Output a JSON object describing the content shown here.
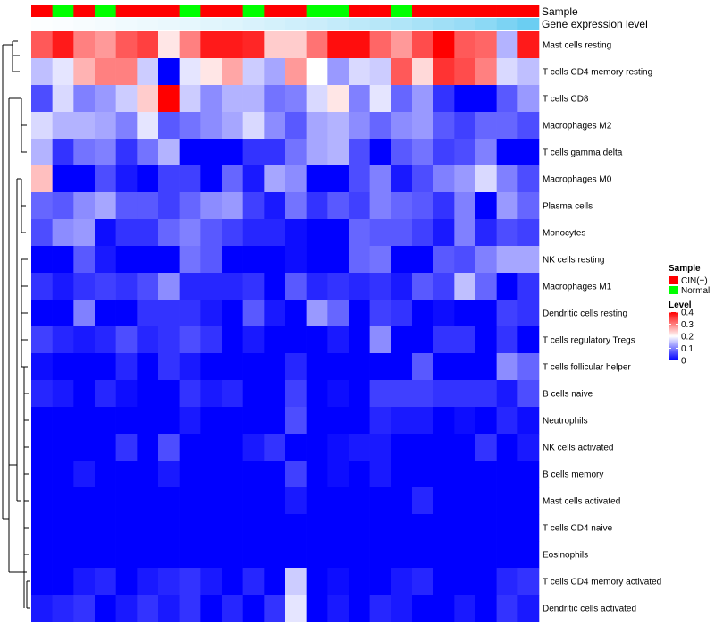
{
  "chart_data": {
    "type": "heatmap",
    "title": "",
    "annotation_tracks": [
      {
        "name": "Sample",
        "values": [
          "CIN(+)",
          "Normal",
          "CIN(+)",
          "Normal",
          "CIN(+)",
          "CIN(+)",
          "CIN(+)",
          "Normal",
          "CIN(+)",
          "CIN(+)",
          "Normal",
          "CIN(+)",
          "CIN(+)",
          "Normal",
          "Normal",
          "CIN(+)",
          "CIN(+)",
          "Normal",
          "CIN(+)",
          "CIN(+)",
          "CIN(+)",
          "CIN(+)",
          "CIN(+)",
          "CIN(+)"
        ]
      },
      {
        "name": "Gene expression level",
        "values": [
          0.02,
          0.03,
          0.05,
          0.07,
          0.09,
          0.11,
          0.13,
          0.15,
          0.18,
          0.2,
          0.23,
          0.26,
          0.29,
          0.32,
          0.36,
          0.4,
          0.44,
          0.48,
          0.53,
          0.58,
          0.63,
          0.7,
          0.8,
          0.9
        ]
      }
    ],
    "legends": {
      "sample": {
        "title": "Sample",
        "entries": [
          {
            "label": "CIN(+)",
            "color": "#ff0000"
          },
          {
            "label": "Normal",
            "color": "#00ff00"
          }
        ]
      },
      "level": {
        "title": "Level",
        "ticks": [
          {
            "value": 0.4,
            "label": "0.4"
          },
          {
            "value": 0.3,
            "label": "0.3"
          },
          {
            "value": 0.2,
            "label": "0.2"
          },
          {
            "value": 0.1,
            "label": "0.1"
          },
          {
            "value": 0,
            "label": "0"
          }
        ]
      }
    },
    "color_scale": {
      "low": "#0000ff",
      "mid": "#ffffff",
      "high": "#ff0000",
      "min": 0,
      "mid_value": 0.2,
      "max": 0.4
    },
    "expr_scale": {
      "low": "#ffffff",
      "high": "#5bc8f0"
    },
    "row_labels": [
      "Mast cells resting",
      "T cells CD4 memory resting",
      "T cells CD8",
      "Macrophages M2",
      "T cells gamma delta",
      "Macrophages M0",
      "Plasma cells",
      "Monocytes",
      "NK cells resting",
      "Macrophages M1",
      "Dendritic cells resting",
      "T cells regulatory  Tregs",
      "T cells follicular helper",
      "B cells naive",
      "Neutrophils",
      "NK cells activated",
      "B cells memory",
      "Mast cells activated",
      "T cells CD4 naive",
      "Eosinophils",
      "T cells CD4 memory activated",
      "Dendritic cells activated"
    ],
    "values": [
      [
        0.33,
        0.38,
        0.3,
        0.28,
        0.33,
        0.35,
        0.22,
        0.3,
        0.38,
        0.38,
        0.37,
        0.24,
        0.24,
        0.31,
        0.39,
        0.39,
        0.32,
        0.28,
        0.34,
        0.4,
        0.33,
        0.32,
        0.14,
        0.38
      ],
      [
        0.15,
        0.18,
        0.26,
        0.3,
        0.3,
        0.16,
        0.0,
        0.18,
        0.22,
        0.27,
        0.16,
        0.13,
        0.28,
        0.2,
        0.12,
        0.17,
        0.16,
        0.33,
        0.23,
        0.36,
        0.34,
        0.3,
        0.17,
        0.15
      ],
      [
        0.06,
        0.17,
        0.1,
        0.12,
        0.16,
        0.24,
        0.4,
        0.16,
        0.11,
        0.14,
        0.14,
        0.09,
        0.1,
        0.17,
        0.22,
        0.1,
        0.18,
        0.08,
        0.12,
        0.04,
        0.0,
        0.0,
        0.07,
        0.12
      ],
      [
        0.17,
        0.14,
        0.14,
        0.13,
        0.1,
        0.18,
        0.07,
        0.09,
        0.11,
        0.13,
        0.17,
        0.11,
        0.07,
        0.13,
        0.14,
        0.11,
        0.08,
        0.11,
        0.12,
        0.07,
        0.05,
        0.08,
        0.08,
        0.06
      ],
      [
        0.14,
        0.04,
        0.09,
        0.1,
        0.04,
        0.09,
        0.14,
        0.0,
        0.0,
        0.0,
        0.04,
        0.04,
        0.09,
        0.13,
        0.14,
        0.06,
        0.0,
        0.07,
        0.09,
        0.05,
        0.06,
        0.1,
        0.0,
        0.0
      ],
      [
        0.25,
        0.0,
        0.0,
        0.06,
        0.02,
        0.0,
        0.05,
        0.05,
        0.0,
        0.08,
        0.02,
        0.13,
        0.11,
        0.0,
        0.0,
        0.06,
        0.1,
        0.02,
        0.06,
        0.1,
        0.12,
        0.17,
        0.1,
        0.06
      ],
      [
        0.08,
        0.07,
        0.11,
        0.13,
        0.07,
        0.07,
        0.05,
        0.08,
        0.11,
        0.12,
        0.05,
        0.02,
        0.09,
        0.04,
        0.07,
        0.05,
        0.1,
        0.08,
        0.07,
        0.04,
        0.1,
        0.0,
        0.12,
        0.08
      ],
      [
        0.06,
        0.11,
        0.12,
        0.01,
        0.04,
        0.04,
        0.08,
        0.1,
        0.07,
        0.05,
        0.03,
        0.03,
        0.01,
        0.0,
        0.0,
        0.08,
        0.07,
        0.07,
        0.05,
        0.02,
        0.1,
        0.03,
        0.06,
        0.05
      ],
      [
        0.0,
        0.0,
        0.07,
        0.02,
        0.0,
        0.0,
        0.0,
        0.09,
        0.07,
        0.0,
        0.0,
        0.0,
        0.01,
        0.0,
        0.0,
        0.08,
        0.09,
        0.0,
        0.0,
        0.07,
        0.06,
        0.1,
        0.13,
        0.13
      ],
      [
        0.04,
        0.02,
        0.04,
        0.05,
        0.04,
        0.06,
        0.11,
        0.03,
        0.03,
        0.03,
        0.04,
        0.0,
        0.07,
        0.03,
        0.04,
        0.03,
        0.04,
        0.02,
        0.07,
        0.05,
        0.15,
        0.08,
        0.0,
        0.04
      ],
      [
        0.0,
        0.0,
        0.1,
        0.0,
        0.0,
        0.04,
        0.04,
        0.04,
        0.02,
        0.0,
        0.07,
        0.02,
        0.0,
        0.12,
        0.08,
        0.0,
        0.05,
        0.04,
        0.0,
        0.01,
        0.0,
        0.0,
        0.05,
        0.04
      ],
      [
        0.05,
        0.03,
        0.02,
        0.03,
        0.06,
        0.03,
        0.04,
        0.06,
        0.04,
        0.0,
        0.02,
        0.0,
        0.0,
        0.0,
        0.02,
        0.0,
        0.11,
        0.0,
        0.0,
        0.04,
        0.04,
        0.0,
        0.04,
        0.0
      ],
      [
        0.01,
        0.0,
        0.0,
        0.0,
        0.03,
        0.0,
        0.04,
        0.02,
        0.0,
        0.0,
        0.0,
        0.0,
        0.03,
        0.0,
        0.0,
        0.0,
        0.0,
        0.0,
        0.07,
        0.0,
        0.0,
        0.0,
        0.11,
        0.08
      ],
      [
        0.03,
        0.02,
        0.0,
        0.03,
        0.01,
        0.0,
        0.0,
        0.04,
        0.02,
        0.03,
        0.0,
        0.0,
        0.05,
        0.0,
        0.01,
        0.0,
        0.05,
        0.05,
        0.05,
        0.04,
        0.04,
        0.04,
        0.02,
        0.06
      ],
      [
        0.0,
        0.0,
        0.0,
        0.0,
        0.0,
        0.0,
        0.0,
        0.02,
        0.0,
        0.0,
        0.0,
        0.0,
        0.06,
        0.0,
        0.0,
        0.0,
        0.03,
        0.02,
        0.02,
        0.0,
        0.01,
        0.0,
        0.03,
        0.01
      ],
      [
        0.0,
        0.0,
        0.0,
        0.0,
        0.04,
        0.0,
        0.06,
        0.0,
        0.0,
        0.0,
        0.02,
        0.04,
        0.0,
        0.0,
        0.01,
        0.02,
        0.02,
        0.0,
        0.0,
        0.0,
        0.0,
        0.04,
        0.0,
        0.02
      ],
      [
        0.0,
        0.0,
        0.02,
        0.0,
        0.0,
        0.0,
        0.02,
        0.0,
        0.0,
        0.0,
        0.0,
        0.0,
        0.05,
        0.0,
        0.01,
        0.0,
        0.02,
        0.0,
        0.0,
        0.0,
        0.0,
        0.0,
        0.0,
        0.0
      ],
      [
        0.0,
        0.0,
        0.0,
        0.0,
        0.0,
        0.0,
        0.0,
        0.0,
        0.0,
        0.0,
        0.0,
        0.0,
        0.02,
        0.0,
        0.0,
        0.0,
        0.0,
        0.0,
        0.03,
        0.0,
        0.0,
        0.0,
        0.0,
        0.0
      ],
      [
        0.0,
        0.0,
        0.0,
        0.0,
        0.0,
        0.0,
        0.0,
        0.0,
        0.0,
        0.0,
        0.0,
        0.0,
        0.0,
        0.0,
        0.0,
        0.0,
        0.0,
        0.0,
        0.0,
        0.0,
        0.0,
        0.0,
        0.0,
        0.0
      ],
      [
        0.0,
        0.0,
        0.0,
        0.0,
        0.0,
        0.0,
        0.0,
        0.0,
        0.0,
        0.0,
        0.0,
        0.0,
        0.0,
        0.0,
        0.0,
        0.0,
        0.0,
        0.0,
        0.0,
        0.0,
        0.0,
        0.0,
        0.0,
        0.0
      ],
      [
        0.0,
        0.0,
        0.02,
        0.03,
        0.0,
        0.02,
        0.03,
        0.04,
        0.02,
        0.0,
        0.03,
        0.0,
        0.16,
        0.0,
        0.01,
        0.0,
        0.0,
        0.02,
        0.03,
        0.0,
        0.0,
        0.0,
        0.03,
        0.04
      ],
      [
        0.02,
        0.03,
        0.04,
        0.0,
        0.02,
        0.04,
        0.02,
        0.04,
        0.0,
        0.03,
        0.0,
        0.04,
        0.18,
        0.0,
        0.02,
        0.0,
        0.03,
        0.02,
        0.0,
        0.0,
        0.02,
        0.0,
        0.04,
        0.02
      ]
    ]
  }
}
